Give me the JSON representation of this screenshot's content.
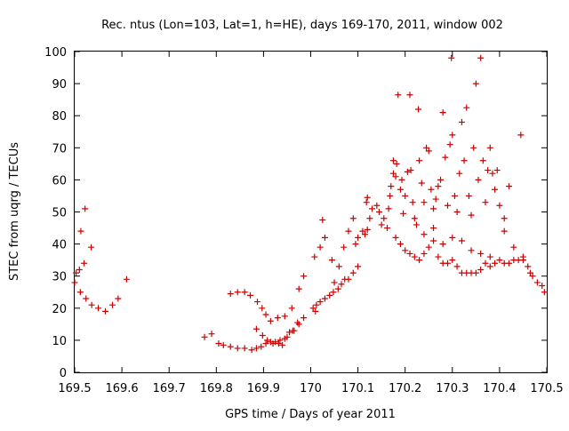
{
  "chart_data": {
    "type": "scatter",
    "title": "Rec. ntus (Lon=103, Lat=1, h=HE), days 169-170, 2011, window 002",
    "xlabel": "GPS time / Days of year 2011",
    "ylabel": "STEC from uqrg / TECUs",
    "xlim": [
      169.5,
      170.5
    ],
    "ylim": [
      0,
      100
    ],
    "x_ticks": [
      "169.5",
      "169.6",
      "169.7",
      "169.8",
      "169.9",
      "170",
      "170.1",
      "170.2",
      "170.3",
      "170.4",
      "170.5"
    ],
    "y_ticks": [
      "0",
      "10",
      "20",
      "30",
      "40",
      "50",
      "60",
      "70",
      "80",
      "90",
      "100"
    ],
    "grid": false,
    "legend": "none",
    "marker": "plus",
    "color": "#cc0000",
    "series": [
      {
        "points": [
          [
            169.5,
            28
          ],
          [
            169.503,
            31
          ],
          [
            169.51,
            32
          ],
          [
            169.512,
            25
          ],
          [
            169.513,
            44
          ],
          [
            169.52,
            34
          ],
          [
            169.522,
            51
          ],
          [
            169.524,
            23
          ],
          [
            169.535,
            39
          ],
          [
            169.536,
            21
          ],
          [
            169.55,
            20
          ],
          [
            169.565,
            19
          ],
          [
            169.58,
            21
          ],
          [
            169.592,
            23
          ],
          [
            169.61,
            29
          ],
          [
            169.775,
            11
          ],
          [
            169.79,
            12
          ],
          [
            169.805,
            9
          ],
          [
            169.815,
            8.5
          ],
          [
            169.83,
            8
          ],
          [
            169.845,
            7.5
          ],
          [
            169.86,
            7.5
          ],
          [
            169.875,
            7
          ],
          [
            169.885,
            7.5
          ],
          [
            169.895,
            8
          ],
          [
            169.905,
            9
          ],
          [
            169.915,
            9.5
          ],
          [
            169.925,
            9.5
          ],
          [
            169.935,
            10
          ],
          [
            169.945,
            10.5
          ],
          [
            169.955,
            12.5
          ],
          [
            169.965,
            13
          ],
          [
            169.975,
            15
          ],
          [
            169.985,
            17
          ],
          [
            169.83,
            24.5
          ],
          [
            169.845,
            25
          ],
          [
            169.86,
            25
          ],
          [
            169.872,
            24
          ],
          [
            169.887,
            22
          ],
          [
            169.897,
            20
          ],
          [
            169.905,
            18
          ],
          [
            169.915,
            16
          ],
          [
            169.93,
            17
          ],
          [
            169.945,
            17.5
          ],
          [
            169.96,
            20
          ],
          [
            169.975,
            26
          ],
          [
            169.985,
            30
          ],
          [
            169.885,
            13.5
          ],
          [
            169.898,
            11.5
          ],
          [
            169.908,
            10
          ],
          [
            169.92,
            9
          ],
          [
            169.932,
            9
          ],
          [
            169.94,
            8.5
          ],
          [
            169.95,
            11
          ],
          [
            169.962,
            13
          ],
          [
            169.972,
            15.5
          ],
          [
            170.005,
            20
          ],
          [
            170.01,
            19
          ],
          [
            170.012,
            21
          ],
          [
            170.02,
            22
          ],
          [
            170.03,
            23
          ],
          [
            170.04,
            24
          ],
          [
            170.048,
            25
          ],
          [
            170.058,
            26
          ],
          [
            170.065,
            27.5
          ],
          [
            170.072,
            29
          ],
          [
            170.08,
            29
          ],
          [
            170.09,
            31
          ],
          [
            170.1,
            33
          ],
          [
            170.008,
            36
          ],
          [
            170.02,
            39
          ],
          [
            170.03,
            42
          ],
          [
            170.025,
            47.5
          ],
          [
            170.045,
            35
          ],
          [
            170.05,
            28
          ],
          [
            170.06,
            33
          ],
          [
            170.07,
            39
          ],
          [
            170.08,
            44
          ],
          [
            170.09,
            48
          ],
          [
            170.095,
            40
          ],
          [
            170.1,
            42
          ],
          [
            170.11,
            44
          ],
          [
            170.115,
            43
          ],
          [
            170.12,
            44.5
          ],
          [
            170.125,
            48
          ],
          [
            170.118,
            53
          ],
          [
            170.12,
            54.5
          ],
          [
            170.13,
            51
          ],
          [
            170.14,
            52
          ],
          [
            170.145,
            50
          ],
          [
            170.15,
            46
          ],
          [
            170.155,
            48
          ],
          [
            170.162,
            45
          ],
          [
            170.165,
            51
          ],
          [
            170.168,
            55
          ],
          [
            170.17,
            58
          ],
          [
            170.175,
            62
          ],
          [
            170.175,
            66
          ],
          [
            170.18,
            61
          ],
          [
            170.182,
            65
          ],
          [
            170.185,
            86.5
          ],
          [
            170.19,
            57
          ],
          [
            170.193,
            60
          ],
          [
            170.196,
            49.5
          ],
          [
            170.2,
            55
          ],
          [
            170.205,
            62.5
          ],
          [
            170.21,
            86.5
          ],
          [
            170.212,
            63
          ],
          [
            170.216,
            53
          ],
          [
            170.22,
            48
          ],
          [
            170.224,
            46
          ],
          [
            170.228,
            82
          ],
          [
            170.23,
            66
          ],
          [
            170.235,
            59
          ],
          [
            170.24,
            53
          ],
          [
            170.245,
            70
          ],
          [
            170.25,
            69
          ],
          [
            170.255,
            57
          ],
          [
            170.26,
            51
          ],
          [
            170.265,
            54
          ],
          [
            170.27,
            58
          ],
          [
            170.275,
            60
          ],
          [
            170.28,
            81
          ],
          [
            170.285,
            67
          ],
          [
            170.29,
            52
          ],
          [
            170.295,
            71
          ],
          [
            170.298,
            98
          ],
          [
            170.3,
            74
          ],
          [
            170.305,
            55
          ],
          [
            170.31,
            50
          ],
          [
            170.315,
            62
          ],
          [
            170.32,
            78
          ],
          [
            170.325,
            66
          ],
          [
            170.33,
            82.5
          ],
          [
            170.335,
            55
          ],
          [
            170.34,
            49
          ],
          [
            170.345,
            70
          ],
          [
            170.35,
            90
          ],
          [
            170.355,
            60
          ],
          [
            170.36,
            98
          ],
          [
            170.365,
            66
          ],
          [
            170.37,
            53
          ],
          [
            170.375,
            63
          ],
          [
            170.38,
            70
          ],
          [
            170.385,
            62
          ],
          [
            170.39,
            57
          ],
          [
            170.395,
            63
          ],
          [
            170.4,
            52
          ],
          [
            170.41,
            48
          ],
          [
            170.42,
            58
          ],
          [
            170.445,
            74
          ],
          [
            170.18,
            42
          ],
          [
            170.19,
            40
          ],
          [
            170.2,
            38
          ],
          [
            170.21,
            37
          ],
          [
            170.22,
            36
          ],
          [
            170.23,
            35
          ],
          [
            170.24,
            37
          ],
          [
            170.25,
            39
          ],
          [
            170.26,
            41
          ],
          [
            170.27,
            36
          ],
          [
            170.28,
            34
          ],
          [
            170.29,
            34
          ],
          [
            170.3,
            35
          ],
          [
            170.31,
            33
          ],
          [
            170.32,
            31
          ],
          [
            170.33,
            31
          ],
          [
            170.34,
            31
          ],
          [
            170.35,
            31
          ],
          [
            170.36,
            32
          ],
          [
            170.37,
            34
          ],
          [
            170.38,
            36
          ],
          [
            170.39,
            34
          ],
          [
            170.4,
            35
          ],
          [
            170.41,
            34
          ],
          [
            170.42,
            34
          ],
          [
            170.43,
            35
          ],
          [
            170.44,
            35
          ],
          [
            170.45,
            35
          ],
          [
            170.46,
            33
          ],
          [
            170.47,
            30
          ],
          [
            170.48,
            28
          ],
          [
            170.49,
            27
          ],
          [
            170.495,
            25
          ],
          [
            170.24,
            43
          ],
          [
            170.26,
            45
          ],
          [
            170.28,
            40
          ],
          [
            170.3,
            42
          ],
          [
            170.32,
            41
          ],
          [
            170.34,
            38
          ],
          [
            170.36,
            37
          ],
          [
            170.38,
            33
          ],
          [
            170.41,
            44
          ],
          [
            170.43,
            39
          ],
          [
            170.45,
            36
          ],
          [
            170.465,
            31
          ]
        ]
      }
    ]
  }
}
